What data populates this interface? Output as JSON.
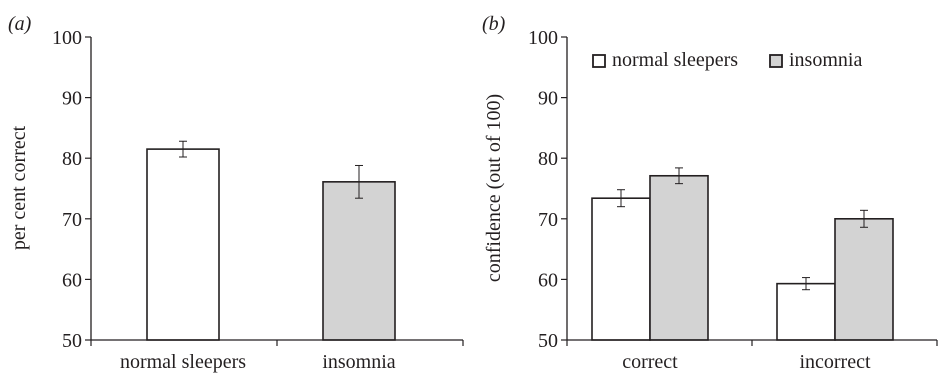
{
  "chart_data": [
    {
      "type": "bar",
      "panel_label": "(a)",
      "ylabel": "per cent correct",
      "ylim": [
        50,
        100
      ],
      "yticks": [
        50,
        60,
        70,
        80,
        90,
        100
      ],
      "categories": [
        "normal sleepers",
        "insomnia"
      ],
      "series": [
        {
          "values": [
            81.5,
            76.1
          ],
          "errors": [
            1.3,
            2.7
          ]
        }
      ],
      "bar_colors": [
        "#ffffff",
        "#d3d3d3"
      ],
      "grid": false
    },
    {
      "type": "bar",
      "panel_label": "(b)",
      "ylabel": "confidence (out of 100)",
      "ylim": [
        50,
        100
      ],
      "yticks": [
        50,
        60,
        70,
        80,
        90,
        100
      ],
      "categories": [
        "correct",
        "incorrect"
      ],
      "series": [
        {
          "name": "normal sleepers",
          "color": "#ffffff",
          "values": [
            73.4,
            59.3
          ],
          "errors": [
            1.4,
            1.0
          ]
        },
        {
          "name": "insomnia",
          "color": "#d3d3d3",
          "values": [
            77.1,
            70.0
          ],
          "errors": [
            1.3,
            1.4
          ]
        }
      ],
      "legend_position": "top",
      "grid": false
    }
  ]
}
